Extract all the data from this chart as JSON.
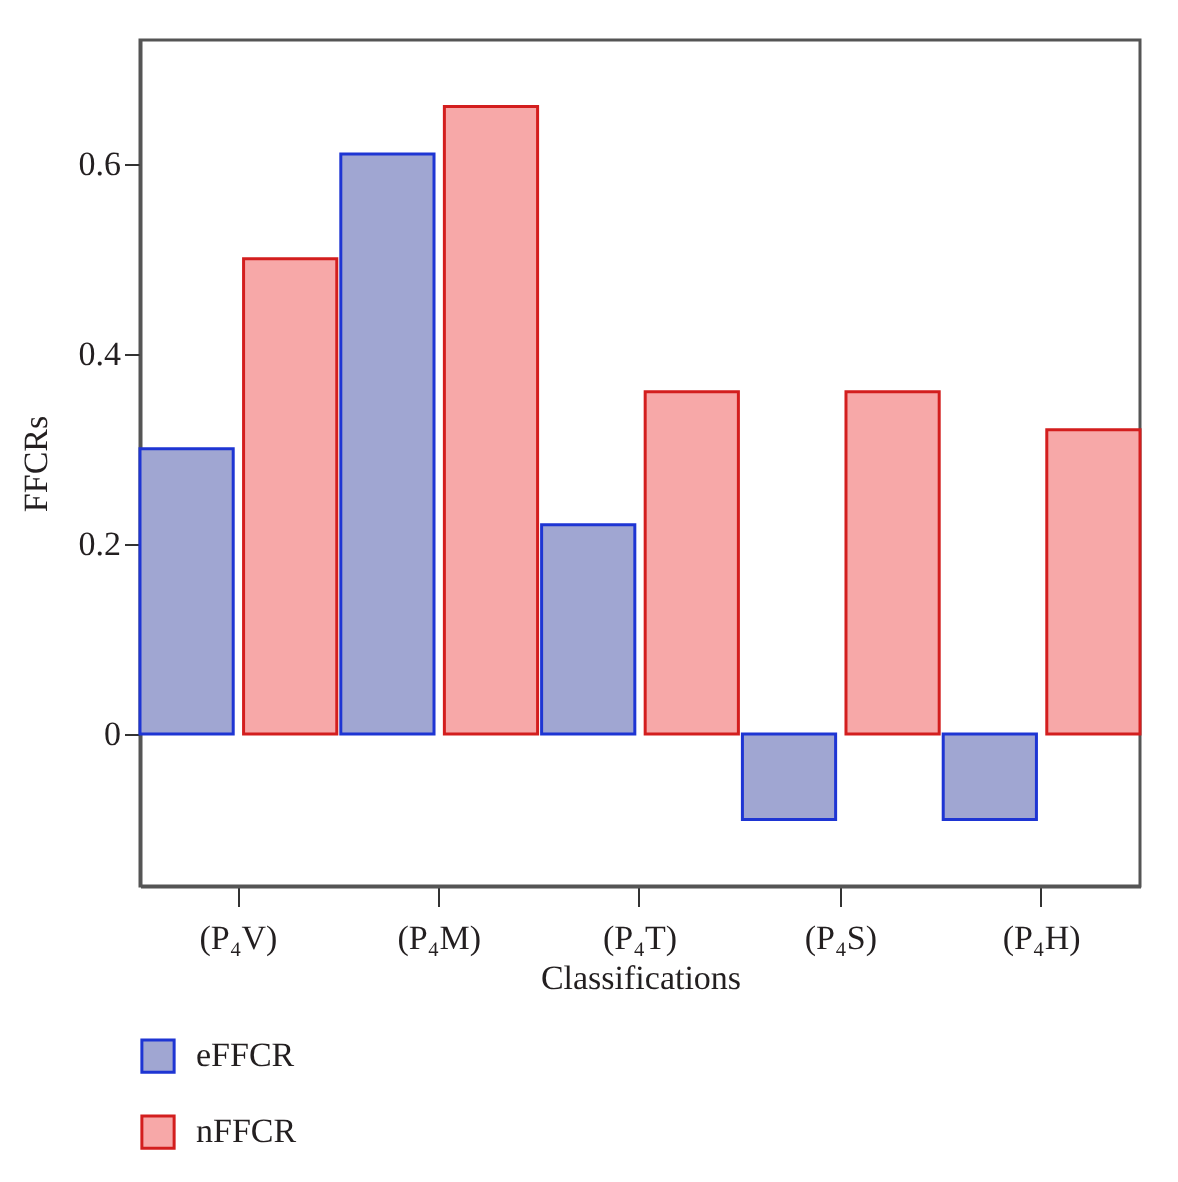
{
  "chart_data": {
    "type": "bar",
    "xlabel": "Classifications",
    "ylabel": "FFCRs",
    "categories": [
      "(P₄V)",
      "(P₄M)",
      "(P₄T)",
      "(P₄S)",
      "(P₄H)"
    ],
    "series": [
      {
        "name": "eFFCR",
        "color": "#a0a6d2",
        "values": [
          0.3,
          0.61,
          0.22,
          -0.09,
          -0.09
        ]
      },
      {
        "name": "nFFCR",
        "color": "#f7a8a8",
        "values": [
          0.5,
          0.66,
          0.36,
          0.36,
          0.32
        ]
      }
    ],
    "ylim": [
      -0.16,
      0.73
    ],
    "yticks": [
      0,
      0.2,
      0.4,
      0.6
    ],
    "grid": false,
    "legend": "bottom"
  }
}
